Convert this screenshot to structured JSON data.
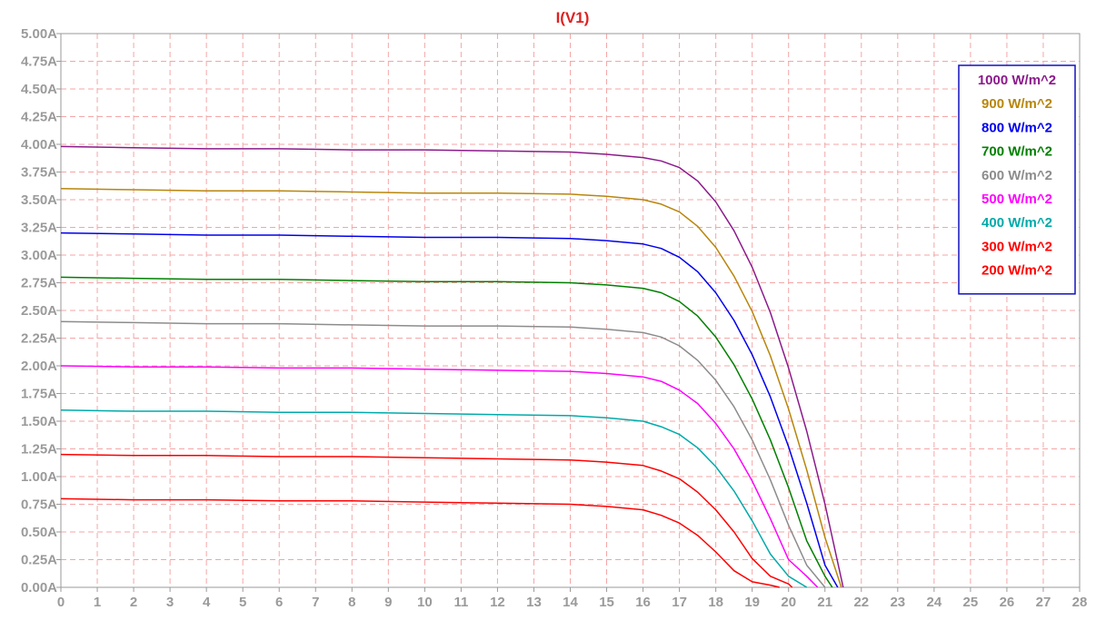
{
  "chart_data": {
    "type": "line",
    "title": "I(V1)",
    "title_color": "#e02020",
    "xlabel": "",
    "ylabel": "",
    "xlim": [
      0,
      28
    ],
    "ylim": [
      0,
      5
    ],
    "x_ticks": [
      0,
      1,
      2,
      3,
      4,
      5,
      6,
      7,
      8,
      9,
      10,
      11,
      12,
      13,
      14,
      15,
      16,
      17,
      18,
      19,
      20,
      21,
      22,
      23,
      24,
      25,
      26,
      27,
      28
    ],
    "x_tick_labels": [
      "0",
      "1",
      "2",
      "3",
      "4",
      "5",
      "6",
      "7",
      "8",
      "9",
      "10",
      "11",
      "12",
      "13",
      "14",
      "15",
      "16",
      "17",
      "18",
      "19",
      "20",
      "21",
      "22",
      "23",
      "24",
      "25",
      "26",
      "27",
      "28"
    ],
    "y_ticks": [
      0,
      0.25,
      0.5,
      0.75,
      1,
      1.25,
      1.5,
      1.75,
      2,
      2.25,
      2.5,
      2.75,
      3,
      3.25,
      3.5,
      3.75,
      4,
      4.25,
      4.5,
      4.75,
      5
    ],
    "y_tick_labels": [
      "0.00A",
      "0.25A",
      "0.50A",
      "0.75A",
      "1.00A",
      "1.25A",
      "1.50A",
      "1.75A",
      "2.00A",
      "2.25A",
      "2.50A",
      "2.75A",
      "3.00A",
      "3.25A",
      "3.50A",
      "3.75A",
      "4.00A",
      "4.25A",
      "4.50A",
      "4.75A",
      "5.00A"
    ],
    "grid": true,
    "grid_color": "#f4a6a6",
    "legend_position": "top-right",
    "legend_border_color": "#1010c0",
    "series": [
      {
        "name": "1000 W/m^2",
        "color": "#8b1a8b",
        "isc": 3.98,
        "voc": 21.5,
        "x": [
          0,
          2,
          4,
          6,
          8,
          10,
          12,
          14,
          15,
          16,
          16.5,
          17,
          17.5,
          18,
          18.5,
          19,
          19.5,
          20,
          20.5,
          21,
          21.5
        ],
        "y": [
          3.98,
          3.97,
          3.96,
          3.96,
          3.95,
          3.95,
          3.94,
          3.93,
          3.91,
          3.88,
          3.85,
          3.79,
          3.67,
          3.48,
          3.22,
          2.89,
          2.48,
          1.98,
          1.41,
          0.75,
          0
        ]
      },
      {
        "name": "900 W/m^2",
        "color": "#b8860b",
        "isc": 3.6,
        "voc": 21.45,
        "x": [
          0,
          2,
          4,
          6,
          8,
          10,
          12,
          14,
          15,
          16,
          16.5,
          17,
          17.5,
          18,
          18.5,
          19,
          19.5,
          20,
          20.5,
          21,
          21.45
        ],
        "y": [
          3.6,
          3.59,
          3.58,
          3.58,
          3.57,
          3.56,
          3.56,
          3.55,
          3.53,
          3.5,
          3.46,
          3.39,
          3.26,
          3.07,
          2.81,
          2.49,
          2.09,
          1.61,
          1.06,
          0.45,
          0
        ]
      },
      {
        "name": "800 W/m^2",
        "color": "#0000ee",
        "isc": 3.2,
        "voc": 21.35,
        "x": [
          0,
          2,
          4,
          6,
          8,
          10,
          12,
          14,
          15,
          16,
          16.5,
          17,
          17.5,
          18,
          18.5,
          19,
          19.5,
          20,
          20.5,
          21,
          21.35
        ],
        "y": [
          3.2,
          3.19,
          3.18,
          3.18,
          3.17,
          3.16,
          3.16,
          3.15,
          3.13,
          3.1,
          3.06,
          2.98,
          2.85,
          2.66,
          2.41,
          2.1,
          1.72,
          1.27,
          0.76,
          0.2,
          0
        ]
      },
      {
        "name": "700 W/m^2",
        "color": "#008000",
        "isc": 2.8,
        "voc": 21.2,
        "x": [
          0,
          2,
          4,
          6,
          8,
          10,
          12,
          14,
          15,
          16,
          16.5,
          17,
          17.5,
          18,
          18.5,
          19,
          19.5,
          20,
          20.5,
          21,
          21.2
        ],
        "y": [
          2.8,
          2.79,
          2.78,
          2.78,
          2.77,
          2.76,
          2.76,
          2.75,
          2.73,
          2.7,
          2.66,
          2.58,
          2.45,
          2.26,
          2.01,
          1.7,
          1.33,
          0.9,
          0.42,
          0.1,
          0
        ]
      },
      {
        "name": "600 W/m^2",
        "color": "#8c8c8c",
        "isc": 2.4,
        "voc": 21.0,
        "x": [
          0,
          2,
          4,
          6,
          8,
          10,
          12,
          14,
          15,
          16,
          16.5,
          17,
          17.5,
          18,
          18.5,
          19,
          19.5,
          20,
          20.5,
          21
        ],
        "y": [
          2.4,
          2.39,
          2.38,
          2.38,
          2.37,
          2.36,
          2.36,
          2.35,
          2.33,
          2.3,
          2.26,
          2.18,
          2.05,
          1.87,
          1.63,
          1.33,
          0.97,
          0.56,
          0.2,
          0
        ]
      },
      {
        "name": "500 W/m^2",
        "color": "#ff00ff",
        "isc": 2.0,
        "voc": 20.8,
        "x": [
          0,
          2,
          4,
          6,
          8,
          10,
          12,
          14,
          15,
          16,
          16.5,
          17,
          17.5,
          18,
          18.5,
          19,
          19.5,
          20,
          20.5,
          20.8
        ],
        "y": [
          2.0,
          1.99,
          1.99,
          1.98,
          1.98,
          1.97,
          1.96,
          1.95,
          1.93,
          1.9,
          1.86,
          1.78,
          1.66,
          1.48,
          1.25,
          0.96,
          0.62,
          0.25,
          0.1,
          0
        ]
      },
      {
        "name": "400 W/m^2",
        "color": "#00aaaa",
        "isc": 1.6,
        "voc": 20.5,
        "x": [
          0,
          2,
          4,
          6,
          8,
          10,
          12,
          14,
          15,
          16,
          16.5,
          17,
          17.5,
          18,
          18.5,
          19,
          19.5,
          20,
          20.5
        ],
        "y": [
          1.6,
          1.59,
          1.59,
          1.58,
          1.58,
          1.57,
          1.56,
          1.55,
          1.53,
          1.5,
          1.45,
          1.38,
          1.26,
          1.09,
          0.87,
          0.6,
          0.3,
          0.1,
          0
        ]
      },
      {
        "name": "300 W/m^2",
        "color": "#ff0000",
        "isc": 1.2,
        "voc": 20.1,
        "x": [
          0,
          2,
          4,
          6,
          8,
          10,
          12,
          14,
          15,
          16,
          16.5,
          17,
          17.5,
          18,
          18.5,
          19,
          19.5,
          20,
          20.1
        ],
        "y": [
          1.2,
          1.19,
          1.19,
          1.18,
          1.18,
          1.17,
          1.16,
          1.15,
          1.13,
          1.1,
          1.05,
          0.98,
          0.86,
          0.7,
          0.5,
          0.26,
          0.1,
          0.03,
          0
        ]
      },
      {
        "name": "200 W/m^2",
        "color": "#ff0000",
        "isc": 0.8,
        "voc": 19.75,
        "x": [
          0,
          2,
          4,
          6,
          8,
          10,
          12,
          14,
          15,
          16,
          16.5,
          17,
          17.5,
          18,
          18.5,
          19,
          19.5,
          19.75
        ],
        "y": [
          0.8,
          0.79,
          0.79,
          0.78,
          0.78,
          0.77,
          0.76,
          0.75,
          0.73,
          0.7,
          0.65,
          0.58,
          0.47,
          0.32,
          0.15,
          0.05,
          0.02,
          0
        ]
      }
    ]
  }
}
